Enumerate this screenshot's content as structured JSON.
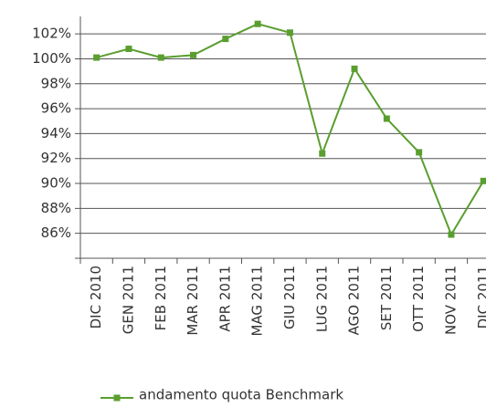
{
  "chart_data": {
    "type": "line",
    "categories": [
      "DIC 2010",
      "GEN 2011",
      "FEB 2011",
      "MAR 2011",
      "APR 2011",
      "MAG 2011",
      "GIU 2011",
      "LUG 2011",
      "AGO 2011",
      "SET 2011",
      "OTT 2011",
      "NOV 2011",
      "DIC 2011"
    ],
    "series": [
      {
        "name": "andamento quota Benchmark",
        "color": "#5a9e2f",
        "values": [
          100.1,
          100.8,
          100.1,
          100.3,
          101.6,
          102.8,
          102.1,
          92.4,
          99.2,
          95.2,
          92.5,
          85.9,
          90.2
        ]
      }
    ],
    "ylim": [
      84,
      103.4
    ],
    "yticks": [
      {
        "value": 86,
        "label": "86%"
      },
      {
        "value": 88,
        "label": "88%"
      },
      {
        "value": 90,
        "label": "90%"
      },
      {
        "value": 92,
        "label": "92%"
      },
      {
        "value": 94,
        "label": "94%"
      },
      {
        "value": 96,
        "label": "96%"
      },
      {
        "value": 98,
        "label": "98%"
      },
      {
        "value": 100,
        "label": "100%"
      },
      {
        "value": 102,
        "label": "102%"
      }
    ],
    "grid": true,
    "legend": "bottom"
  }
}
